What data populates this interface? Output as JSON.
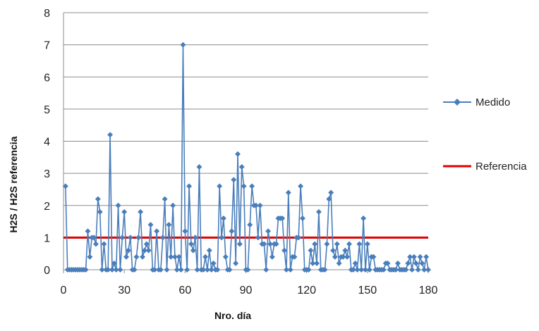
{
  "chart_data": {
    "type": "line",
    "xlabel": "Nro. día",
    "ylabel": "H2S  / H2S referencia",
    "xlim": [
      0,
      180
    ],
    "ylim": [
      0,
      8
    ],
    "x_ticks": [
      0,
      30,
      60,
      90,
      120,
      150,
      180
    ],
    "y_ticks": [
      0,
      1,
      2,
      3,
      4,
      5,
      6,
      7,
      8
    ],
    "grid": "horizontal",
    "legend_position": "right",
    "series": [
      {
        "name": "Medido",
        "color": "#4a7ebb",
        "marker": "diamond",
        "points": [
          [
            1,
            2.6
          ],
          [
            2,
            0
          ],
          [
            3,
            0
          ],
          [
            4,
            0
          ],
          [
            5,
            0
          ],
          [
            6,
            0
          ],
          [
            7,
            0
          ],
          [
            8,
            0
          ],
          [
            9,
            0
          ],
          [
            10,
            0
          ],
          [
            11,
            0
          ],
          [
            12,
            1.2
          ],
          [
            13,
            0.4
          ],
          [
            14,
            1
          ],
          [
            15,
            1
          ],
          [
            16,
            0.8
          ],
          [
            17,
            2.2
          ],
          [
            18,
            1.8
          ],
          [
            19,
            0
          ],
          [
            20,
            0.8
          ],
          [
            21,
            0
          ],
          [
            22,
            0
          ],
          [
            23,
            4.2
          ],
          [
            24,
            0
          ],
          [
            25,
            0.2
          ],
          [
            26,
            0
          ],
          [
            27,
            2
          ],
          [
            28,
            0
          ],
          [
            29,
            1
          ],
          [
            30,
            1.8
          ],
          [
            31,
            0.4
          ],
          [
            32,
            0.6
          ],
          [
            33,
            1
          ],
          [
            34,
            0
          ],
          [
            35,
            0
          ],
          [
            36,
            0.4
          ],
          [
            37,
            1
          ],
          [
            38,
            1.8
          ],
          [
            39,
            0.4
          ],
          [
            40,
            0.6
          ],
          [
            41,
            0.8
          ],
          [
            42,
            0.6
          ],
          [
            43,
            1.4
          ],
          [
            44,
            0
          ],
          [
            45,
            0
          ],
          [
            46,
            1.2
          ],
          [
            47,
            0
          ],
          [
            48,
            0
          ],
          [
            49,
            1
          ],
          [
            50,
            2.2
          ],
          [
            51,
            0
          ],
          [
            52,
            1.4
          ],
          [
            53,
            0.4
          ],
          [
            54,
            2
          ],
          [
            55,
            0.4
          ],
          [
            56,
            0
          ],
          [
            57,
            0.4
          ],
          [
            58,
            0
          ],
          [
            59,
            7
          ],
          [
            60,
            1.2
          ],
          [
            61,
            0
          ],
          [
            62,
            2.6
          ],
          [
            63,
            0.8
          ],
          [
            64,
            0.6
          ],
          [
            65,
            1
          ],
          [
            66,
            0
          ],
          [
            67,
            3.2
          ],
          [
            68,
            0
          ],
          [
            69,
            0
          ],
          [
            70,
            0.4
          ],
          [
            71,
            0
          ],
          [
            72,
            0.6
          ],
          [
            73,
            0
          ],
          [
            74,
            0.2
          ],
          [
            75,
            0
          ],
          [
            76,
            0
          ],
          [
            77,
            2.6
          ],
          [
            78,
            1
          ],
          [
            79,
            1.6
          ],
          [
            80,
            0.4
          ],
          [
            81,
            0
          ],
          [
            82,
            0
          ],
          [
            83,
            1.2
          ],
          [
            84,
            2.8
          ],
          [
            85,
            0.2
          ],
          [
            86,
            3.6
          ],
          [
            87,
            0.8
          ],
          [
            88,
            3.2
          ],
          [
            89,
            2.6
          ],
          [
            90,
            0
          ],
          [
            91,
            0
          ],
          [
            92,
            1.4
          ],
          [
            93,
            2.6
          ],
          [
            94,
            2
          ],
          [
            95,
            2
          ],
          [
            96,
            1
          ],
          [
            97,
            2
          ],
          [
            98,
            0.8
          ],
          [
            99,
            0.8
          ],
          [
            100,
            0
          ],
          [
            101,
            1.2
          ],
          [
            102,
            0.8
          ],
          [
            103,
            0.4
          ],
          [
            104,
            0.8
          ],
          [
            105,
            0.8
          ],
          [
            106,
            1.6
          ],
          [
            107,
            1.6
          ],
          [
            108,
            1.6
          ],
          [
            109,
            0.6
          ],
          [
            110,
            0
          ],
          [
            111,
            2.4
          ],
          [
            112,
            0
          ],
          [
            113,
            0.4
          ],
          [
            114,
            0.4
          ],
          [
            115,
            1
          ],
          [
            116,
            1
          ],
          [
            117,
            2.6
          ],
          [
            118,
            1.6
          ],
          [
            119,
            0
          ],
          [
            120,
            0
          ],
          [
            121,
            0
          ],
          [
            122,
            0.6
          ],
          [
            123,
            0.2
          ],
          [
            124,
            0.8
          ],
          [
            125,
            0.2
          ],
          [
            126,
            1.8
          ],
          [
            127,
            0
          ],
          [
            128,
            0
          ],
          [
            129,
            0
          ],
          [
            130,
            0.8
          ],
          [
            131,
            2.2
          ],
          [
            132,
            2.4
          ],
          [
            133,
            0.6
          ],
          [
            134,
            0.4
          ],
          [
            135,
            0.8
          ],
          [
            136,
            0.2
          ],
          [
            137,
            0.4
          ],
          [
            138,
            0.4
          ],
          [
            139,
            0.6
          ],
          [
            140,
            0.4
          ],
          [
            141,
            0.8
          ],
          [
            142,
            0
          ],
          [
            143,
            0
          ],
          [
            144,
            0.2
          ],
          [
            145,
            0
          ],
          [
            146,
            0.8
          ],
          [
            147,
            0
          ],
          [
            148,
            1.6
          ],
          [
            149,
            0
          ],
          [
            150,
            0.8
          ],
          [
            151,
            0
          ],
          [
            152,
            0.4
          ],
          [
            153,
            0.4
          ],
          [
            154,
            0
          ],
          [
            155,
            0
          ],
          [
            156,
            0
          ],
          [
            157,
            0
          ],
          [
            158,
            0
          ],
          [
            159,
            0.2
          ],
          [
            160,
            0.2
          ],
          [
            161,
            0
          ],
          [
            162,
            0
          ],
          [
            163,
            0
          ],
          [
            164,
            0
          ],
          [
            165,
            0.2
          ],
          [
            166,
            0
          ],
          [
            167,
            0
          ],
          [
            168,
            0
          ],
          [
            169,
            0
          ],
          [
            170,
            0.2
          ],
          [
            171,
            0.4
          ],
          [
            172,
            0
          ],
          [
            173,
            0.4
          ],
          [
            174,
            0.2
          ],
          [
            175,
            0
          ],
          [
            176,
            0.4
          ],
          [
            177,
            0.2
          ],
          [
            178,
            0
          ],
          [
            179,
            0.4
          ],
          [
            180,
            0
          ]
        ]
      },
      {
        "name": "Referencia",
        "color": "#e00000",
        "marker": "none",
        "points": [
          [
            0,
            1
          ],
          [
            180,
            1
          ]
        ]
      }
    ]
  }
}
